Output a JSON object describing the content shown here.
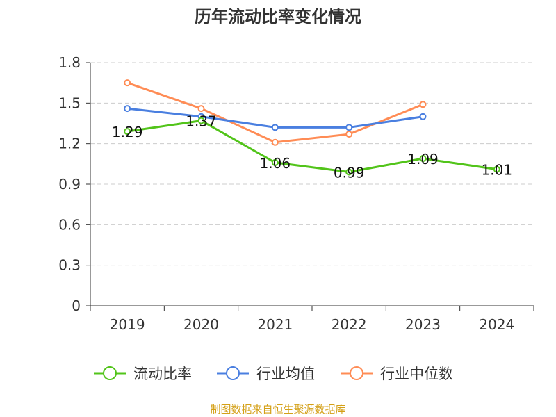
{
  "chart_data": {
    "type": "line",
    "title": "历年流动比率变化情况",
    "categories": [
      "2019",
      "2020",
      "2021",
      "2022",
      "2023",
      "2024"
    ],
    "ylim": [
      0,
      1.8
    ],
    "yticks": [
      "0",
      "0.3",
      "0.6",
      "0.9",
      "1.2",
      "1.5",
      "1.8"
    ],
    "grid": true,
    "legend_position": "bottom",
    "series": [
      {
        "name": "流动比率",
        "color": "#52c41a",
        "values": [
          1.29,
          1.37,
          1.06,
          0.99,
          1.09,
          1.01
        ],
        "labels": [
          "1.29",
          "1.37",
          "1.06",
          "0.99",
          "1.09",
          "1.01"
        ]
      },
      {
        "name": "行业均值",
        "color": "#4a7fe0",
        "values": [
          1.46,
          1.4,
          1.32,
          1.32,
          1.4,
          null
        ]
      },
      {
        "name": "行业中位数",
        "color": "#ff8c55",
        "values": [
          1.65,
          1.46,
          1.21,
          1.27,
          1.49,
          null
        ]
      }
    ],
    "source": "制图数据来自恒生聚源数据库"
  }
}
